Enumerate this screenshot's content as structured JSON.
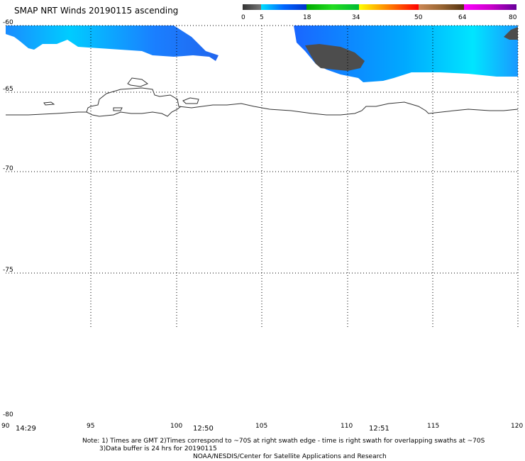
{
  "title": "SMAP NRT Winds 20190115 ascending",
  "colorbar": {
    "labels": [
      "0",
      "5",
      "18",
      "34",
      "50",
      "64",
      "80"
    ],
    "segments": [
      "#555555",
      "#0099ff",
      "#00cc00",
      "#ffcc00",
      "#ff6600",
      "#996633",
      "#cc00cc"
    ]
  },
  "lat_labels": [
    "-60",
    "-65",
    "-70",
    "-75",
    "-80"
  ],
  "lon_labels": [
    "90",
    "95",
    "100",
    "105",
    "110",
    "115",
    "120"
  ],
  "swath_times": [
    "14:29",
    "12:50",
    "12:51"
  ],
  "note_line1": "Note: 1) Times are GMT 2)Times correspond to ~70S at right swath edge - time is right swath for overlapping swaths at ~70S",
  "note_line2": "3)Data buffer is 24 hrs for 20190115",
  "credit": "NOAA/NESDIS/Center for Satellite Applications and Research"
}
